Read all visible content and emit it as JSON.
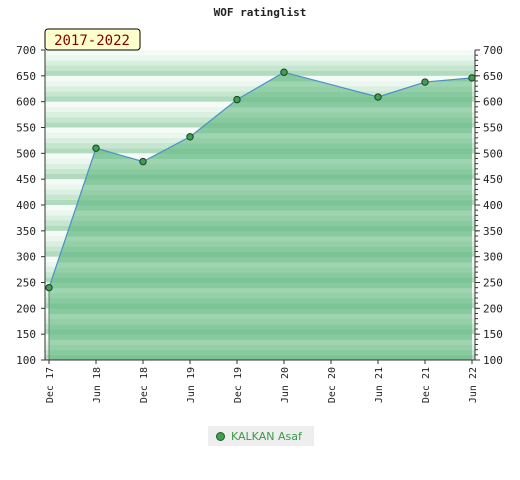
{
  "chart_data": {
    "type": "area",
    "title": "WOF ratinglist",
    "badge": "2017-2022",
    "xlabel": "",
    "ylabel": "",
    "ylim": [
      100,
      700
    ],
    "y_ticks": [
      100,
      150,
      200,
      250,
      300,
      350,
      400,
      450,
      500,
      550,
      600,
      650,
      700
    ],
    "x_tick_labels": [
      "Dec 17",
      "Jun 18",
      "Dec 18",
      "Jun 19",
      "Dec 19",
      "Jun 20",
      "Dec 20",
      "Jun 21",
      "Dec 21",
      "Jun 22"
    ],
    "legend_position": "bottom-center",
    "grid": true,
    "series": [
      {
        "name": "KALKAN Asaf",
        "color": "#3fa050",
        "points": [
          {
            "x": "Dec 17",
            "y": 240
          },
          {
            "x": "Jun 18",
            "y": 510
          },
          {
            "x": "Dec 18",
            "y": 484
          },
          {
            "x": "Jun 19",
            "y": 532
          },
          {
            "x": "Dec 19",
            "y": 604
          },
          {
            "x": "Jun 20",
            "y": 657
          },
          {
            "x": "Jun 21",
            "y": 609
          },
          {
            "x": "Dec 21",
            "y": 638
          },
          {
            "x": "Jun 22",
            "y": 646
          }
        ]
      }
    ]
  }
}
